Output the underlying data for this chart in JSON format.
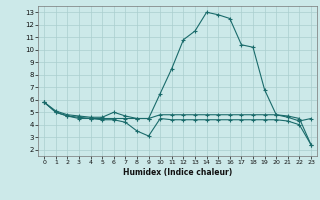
{
  "xlabel": "Humidex (Indice chaleur)",
  "background_color": "#cce9e9",
  "grid_color": "#aacece",
  "line_color": "#1a6b6b",
  "xlim": [
    -0.5,
    23.5
  ],
  "ylim": [
    1.5,
    13.5
  ],
  "xticks": [
    0,
    1,
    2,
    3,
    4,
    5,
    6,
    7,
    8,
    9,
    10,
    11,
    12,
    13,
    14,
    15,
    16,
    17,
    18,
    19,
    20,
    21,
    22,
    23
  ],
  "yticks": [
    2,
    3,
    4,
    5,
    6,
    7,
    8,
    9,
    10,
    11,
    12,
    13
  ],
  "line1_x": [
    0,
    1,
    2,
    3,
    4,
    5,
    6,
    7,
    8,
    9,
    10,
    11,
    12,
    13,
    14,
    15,
    16,
    17,
    18,
    19,
    20,
    21,
    22,
    23
  ],
  "line1_y": [
    5.8,
    5.1,
    4.8,
    4.7,
    4.6,
    4.6,
    5.0,
    4.7,
    4.5,
    4.5,
    6.5,
    8.5,
    10.8,
    11.5,
    13.0,
    12.8,
    12.5,
    10.4,
    10.2,
    6.8,
    4.8,
    4.6,
    4.3,
    4.5
  ],
  "line2_x": [
    0,
    1,
    2,
    3,
    4,
    5,
    6,
    7,
    8,
    9,
    10,
    11,
    12,
    13,
    14,
    15,
    16,
    17,
    18,
    19,
    20,
    21,
    22,
    23
  ],
  "line2_y": [
    5.8,
    5.0,
    4.7,
    4.6,
    4.5,
    4.5,
    4.5,
    4.5,
    4.5,
    4.5,
    4.8,
    4.8,
    4.8,
    4.8,
    4.8,
    4.8,
    4.8,
    4.8,
    4.8,
    4.8,
    4.8,
    4.7,
    4.5,
    2.4
  ],
  "line3_x": [
    0,
    1,
    2,
    3,
    4,
    5,
    6,
    7,
    8,
    9,
    10,
    11,
    12,
    13,
    14,
    15,
    16,
    17,
    18,
    19,
    20,
    21,
    22,
    23
  ],
  "line3_y": [
    5.8,
    5.0,
    4.7,
    4.5,
    4.5,
    4.4,
    4.4,
    4.2,
    3.5,
    3.1,
    4.5,
    4.4,
    4.4,
    4.4,
    4.4,
    4.4,
    4.4,
    4.4,
    4.4,
    4.4,
    4.4,
    4.3,
    4.0,
    2.4
  ]
}
